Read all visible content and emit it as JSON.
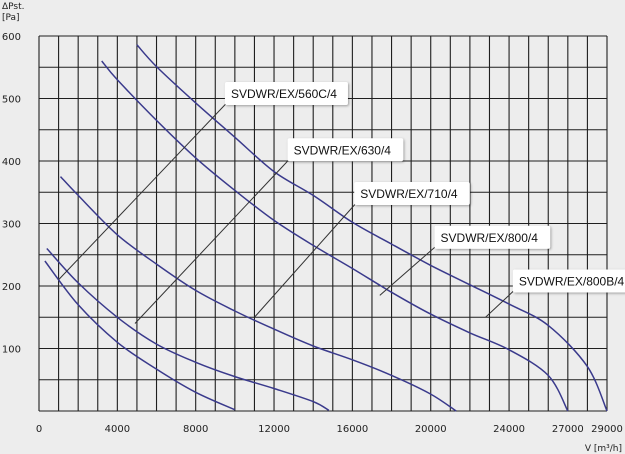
{
  "chart_data": {
    "type": "line",
    "ylabel_line1": "ΔPst.",
    "ylabel_line2": "[Pa]",
    "xlabel": "V [m³/h]",
    "xlim": [
      0,
      29000
    ],
    "ylim": [
      0,
      600
    ],
    "x_ticks": [
      0,
      4000,
      8000,
      12000,
      16000,
      20000,
      24000,
      27000,
      29000
    ],
    "y_ticks": [
      100,
      200,
      300,
      400,
      500,
      600
    ],
    "grid": true,
    "grid_x_step": 1000,
    "grid_y_step": 50,
    "colors": {
      "curve": "#3a3a8c",
      "grid": "#1f1f1f",
      "leader": "#333333",
      "background": "#ededed"
    },
    "series": [
      {
        "name": "SVDWR/EX/560C/4",
        "points": [
          [
            300,
            240
          ],
          [
            2000,
            170
          ],
          [
            4000,
            110
          ],
          [
            6000,
            67
          ],
          [
            8000,
            30
          ],
          [
            10000,
            2
          ]
        ]
      },
      {
        "name": "SVDWR/EX/630/4",
        "points": [
          [
            400,
            260
          ],
          [
            2000,
            205
          ],
          [
            4000,
            150
          ],
          [
            6000,
            107
          ],
          [
            8000,
            78
          ],
          [
            10000,
            55
          ],
          [
            12000,
            36
          ],
          [
            14000,
            15
          ],
          [
            14800,
            1
          ]
        ]
      },
      {
        "name": "SVDWR/EX/710/4",
        "points": [
          [
            1100,
            375
          ],
          [
            2000,
            345
          ],
          [
            4000,
            282
          ],
          [
            6000,
            235
          ],
          [
            8000,
            193
          ],
          [
            10000,
            160
          ],
          [
            12000,
            131
          ],
          [
            14000,
            104
          ],
          [
            16000,
            82
          ],
          [
            18000,
            57
          ],
          [
            20000,
            27
          ],
          [
            21300,
            0
          ]
        ]
      },
      {
        "name": "SVDWR/EX/800/4",
        "points": [
          [
            3200,
            560
          ],
          [
            4000,
            530
          ],
          [
            6000,
            465
          ],
          [
            8000,
            405
          ],
          [
            10000,
            353
          ],
          [
            12000,
            305
          ],
          [
            14000,
            265
          ],
          [
            16000,
            228
          ],
          [
            18000,
            190
          ],
          [
            20000,
            155
          ],
          [
            22000,
            125
          ],
          [
            24000,
            98
          ],
          [
            26000,
            57
          ],
          [
            27000,
            0
          ]
        ]
      },
      {
        "name": "SVDWR/EX/800B/4",
        "points": [
          [
            5000,
            586
          ],
          [
            6000,
            551
          ],
          [
            8000,
            493
          ],
          [
            10000,
            438
          ],
          [
            12000,
            383
          ],
          [
            14000,
            345
          ],
          [
            16000,
            302
          ],
          [
            18000,
            267
          ],
          [
            20000,
            233
          ],
          [
            22000,
            202
          ],
          [
            24000,
            171
          ],
          [
            26000,
            137
          ],
          [
            28000,
            71
          ],
          [
            29000,
            0
          ]
        ]
      }
    ],
    "labels": [
      {
        "text": "SVDWR/EX/560C/4",
        "anchor": [
          1000,
          210
        ],
        "tip": [
          9800,
          500
        ]
      },
      {
        "text": "SVDWR/EX/630/4",
        "anchor": [
          4900,
          140
        ],
        "tip": [
          13000,
          410
        ]
      },
      {
        "text": "SVDWR/EX/710/4",
        "anchor": [
          11000,
          150
        ],
        "tip": [
          16400,
          340
        ]
      },
      {
        "text": "SVDWR/EX/800/4",
        "anchor": [
          17400,
          185
        ],
        "tip": [
          20500,
          270
        ]
      },
      {
        "text": "SVDWR/EX/800B/4",
        "anchor": [
          22800,
          150
        ],
        "tip": [
          24500,
          200
        ]
      }
    ]
  }
}
